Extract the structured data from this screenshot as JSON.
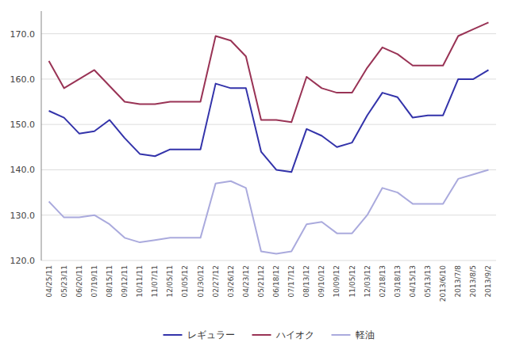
{
  "chart_data": {
    "type": "line",
    "categories": [
      "04/25/11",
      "05/23/11",
      "06/20/11",
      "07/19/11",
      "08/15/11",
      "09/12/11",
      "10/11/11",
      "11/07/11",
      "12/05/11",
      "01/05/12",
      "01/30/12",
      "02/27/12",
      "03/26/12",
      "04/23/12",
      "05/21/12",
      "06/18/12",
      "07/17/12",
      "08/13/12",
      "09/10/12",
      "10/09/12",
      "11/05/12",
      "12/03/12",
      "02/18/13",
      "03/18/13",
      "04/15/13",
      "05/13/13",
      "2013/6/10",
      "2013/7/8",
      "2013/8/5",
      "2013/9/2"
    ],
    "series": [
      {
        "name": "レギュラー",
        "color": "#3333aa",
        "values": [
          153.0,
          151.5,
          148.0,
          148.5,
          151.0,
          147.0,
          143.5,
          143.0,
          144.5,
          144.5,
          144.5,
          159.0,
          158.0,
          158.0,
          144.0,
          140.0,
          139.5,
          149.0,
          147.5,
          145.0,
          146.0,
          152.0,
          157.0,
          156.0,
          151.5,
          152.0,
          152.0,
          160.0,
          160.0,
          162.0
        ]
      },
      {
        "name": "ハイオク",
        "color": "#993355",
        "values": [
          164.0,
          158.0,
          160.0,
          162.0,
          158.5,
          155.0,
          154.5,
          154.5,
          155.0,
          155.0,
          155.0,
          169.5,
          168.5,
          165.0,
          151.0,
          151.0,
          150.5,
          160.5,
          158.0,
          157.0,
          157.0,
          162.5,
          167.0,
          165.5,
          163.0,
          163.0,
          163.0,
          169.5,
          171.0,
          172.5
        ]
      },
      {
        "name": "軽油",
        "color": "#aaaadd",
        "values": [
          133.0,
          129.5,
          129.5,
          130.0,
          128.0,
          125.0,
          124.0,
          124.5,
          125.0,
          125.0,
          125.0,
          137.0,
          137.5,
          136.0,
          122.0,
          121.5,
          122.0,
          128.0,
          128.5,
          126.0,
          126.0,
          130.0,
          136.0,
          135.0,
          132.5,
          132.5,
          132.5,
          138.0,
          139.0,
          140.0
        ]
      }
    ],
    "ylim": [
      120.0,
      175.0
    ],
    "yticks": [
      {
        "value": 120.0,
        "label": "120.0"
      },
      {
        "value": 130.0,
        "label": "130.0"
      },
      {
        "value": 140.0,
        "label": "140.0"
      },
      {
        "value": 150.0,
        "label": "150.0"
      },
      {
        "value": 160.0,
        "label": "160.0"
      },
      {
        "value": 170.0,
        "label": "170.0"
      }
    ],
    "grid": true,
    "legend": "bottom"
  }
}
